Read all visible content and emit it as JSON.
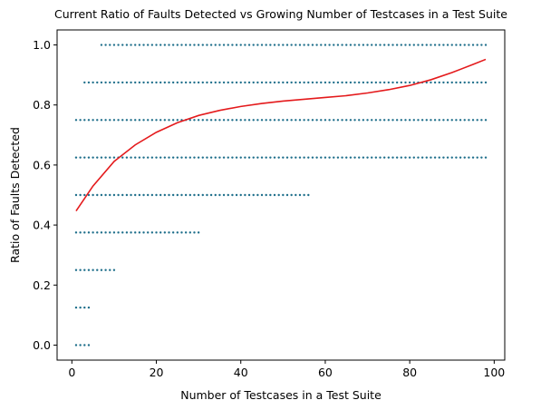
{
  "chart_data": {
    "type": "scatter",
    "title": "Current Ratio of Faults Detected vs Growing Number of Testcases in a Test Suite",
    "xlabel": "Number of Testcases in a Test Suite",
    "ylabel": "Ratio of Faults Detected",
    "xlim": [
      -3.5,
      102.5
    ],
    "ylim": [
      -0.05,
      1.05
    ],
    "x_ticks": [
      0,
      20,
      40,
      60,
      80,
      100
    ],
    "x_tick_labels": [
      "0",
      "20",
      "40",
      "60",
      "80",
      "100"
    ],
    "y_ticks": [
      0.0,
      0.2,
      0.4,
      0.6,
      0.8,
      1.0
    ],
    "y_tick_labels": [
      "0.0",
      "0.2",
      "0.4",
      "0.6",
      "0.8",
      "1.0"
    ],
    "grid": false,
    "legend": "none",
    "scatter_color": "#1f6f8b",
    "fit_color": "#e41a1c",
    "points": {
      "levels": [
        {
          "y": 0.0,
          "x_range": [
            1,
            4
          ]
        },
        {
          "y": 0.125,
          "x_range": [
            1,
            4
          ]
        },
        {
          "y": 0.25,
          "x_range": [
            1,
            10
          ]
        },
        {
          "y": 0.375,
          "x_range": [
            1,
            30
          ]
        },
        {
          "y": 0.5,
          "x_range": [
            1,
            56
          ]
        },
        {
          "y": 0.625,
          "x_range": [
            1,
            98
          ]
        },
        {
          "y": 0.75,
          "x_range": [
            1,
            98
          ]
        },
        {
          "y": 0.875,
          "x_range": [
            3,
            98
          ]
        },
        {
          "y": 1.0,
          "x_range": [
            7,
            98
          ]
        }
      ]
    },
    "fit_curve": {
      "x": [
        1,
        5,
        10,
        15,
        20,
        25,
        30,
        35,
        40,
        45,
        50,
        55,
        60,
        65,
        70,
        75,
        80,
        85,
        90,
        95,
        98
      ],
      "y": [
        0.447,
        0.53,
        0.612,
        0.667,
        0.709,
        0.741,
        0.765,
        0.782,
        0.795,
        0.805,
        0.813,
        0.819,
        0.825,
        0.831,
        0.84,
        0.851,
        0.865,
        0.884,
        0.908,
        0.935,
        0.952
      ]
    }
  }
}
